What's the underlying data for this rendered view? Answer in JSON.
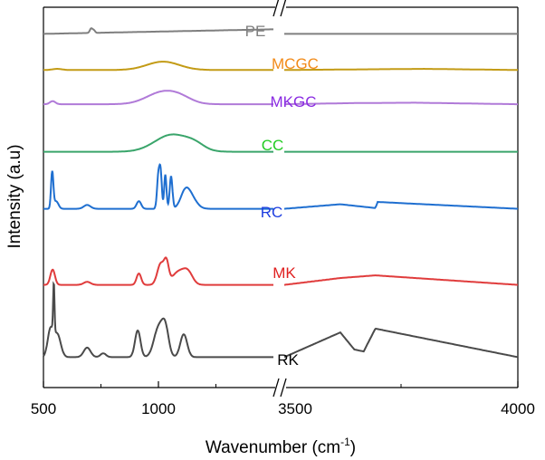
{
  "chart_data": {
    "type": "line",
    "title": "",
    "xlabel": "Wavenumber (cm",
    "xlabel_superscript": "-1",
    "xlabel_close": ")",
    "ylabel": "Intensity (a.u)",
    "y_ticks_shown": false,
    "axis_break": "between 1500 and 3500",
    "x_segments": [
      {
        "range": [
          500,
          1500
        ],
        "ticks": [
          500,
          1000
        ]
      },
      {
        "range": [
          3500,
          4000
        ],
        "ticks": [
          3500,
          4000
        ]
      }
    ],
    "x_tick_labels": [
      "500",
      "1000",
      "3500",
      "4000"
    ],
    "series": [
      {
        "name": "PE",
        "color": "#7f7f7f",
        "baseline": 0.93,
        "peaks": [
          [
            708,
            0.012,
            6
          ],
          [
            720,
            0.006,
            5
          ]
        ],
        "ramp": [
          [
            500,
            0.0
          ],
          [
            1500,
            0.012
          ]
        ],
        "right": [
          [
            3500,
            0.0
          ],
          [
            3700,
            0.0
          ],
          [
            4000,
            0.0
          ]
        ]
      },
      {
        "name": "MCGC",
        "color": "#c39b16",
        "baseline": 0.835,
        "peaks": [
          [
            1020,
            0.022,
            70
          ],
          [
            560,
            0.003,
            20
          ]
        ],
        "ramp": [
          [
            500,
            0.0
          ],
          [
            1500,
            0.0
          ]
        ],
        "right": [
          [
            3500,
            0.0
          ],
          [
            3800,
            0.003
          ],
          [
            4000,
            0.0
          ]
        ]
      },
      {
        "name": "MKGC",
        "color": "#b07ad8",
        "baseline": 0.745,
        "peaks": [
          [
            540,
            0.008,
            12
          ],
          [
            1020,
            0.032,
            70
          ],
          [
            1100,
            0.01,
            50
          ]
        ],
        "ramp": [
          [
            500,
            0.0
          ],
          [
            1500,
            0.0
          ]
        ],
        "right": [
          [
            3500,
            0.0
          ],
          [
            3650,
            0.003
          ],
          [
            3780,
            0.004
          ],
          [
            4000,
            0.0
          ]
        ]
      },
      {
        "name": "CC",
        "color": "#3aa56b",
        "baseline": 0.62,
        "peaks": [
          [
            1060,
            0.045,
            75
          ],
          [
            1160,
            0.012,
            40
          ]
        ],
        "ramp": [
          [
            500,
            0.0
          ],
          [
            1500,
            0.0
          ]
        ],
        "right": [
          [
            3500,
            0.0
          ],
          [
            4000,
            0.0
          ]
        ]
      },
      {
        "name": "RC",
        "color": "#1f6fd0",
        "baseline": 0.47,
        "peaks": [
          [
            538,
            0.095,
            5
          ],
          [
            555,
            0.02,
            10
          ],
          [
            690,
            0.01,
            15
          ],
          [
            915,
            0.02,
            10
          ],
          [
            1000,
            0.09,
            6
          ],
          [
            1010,
            0.085,
            5
          ],
          [
            1030,
            0.09,
            5
          ],
          [
            1055,
            0.085,
            6
          ],
          [
            1115,
            0.035,
            20
          ],
          [
            1140,
            0.03,
            25
          ]
        ],
        "ramp": [
          [
            500,
            0.0
          ],
          [
            1500,
            0.0
          ]
        ],
        "right": [
          [
            3500,
            0.0
          ],
          [
            3620,
            0.012
          ],
          [
            3695,
            0.002
          ],
          [
            3700,
            0.018
          ],
          [
            4000,
            0.0
          ]
        ]
      },
      {
        "name": "MK",
        "color": "#e03c3c",
        "baseline": 0.27,
        "peaks": [
          [
            540,
            0.04,
            10
          ],
          [
            690,
            0.008,
            15
          ],
          [
            915,
            0.03,
            10
          ],
          [
            1010,
            0.055,
            15
          ],
          [
            1035,
            0.05,
            10
          ],
          [
            1090,
            0.035,
            30
          ],
          [
            1130,
            0.025,
            20
          ]
        ],
        "ramp": [
          [
            500,
            0.0
          ],
          [
            1500,
            0.0
          ]
        ],
        "right": [
          [
            3500,
            0.0
          ],
          [
            3620,
            0.018
          ],
          [
            3695,
            0.025
          ],
          [
            4000,
            0.0
          ]
        ]
      },
      {
        "name": "RK",
        "color": "#4a4a4a",
        "baseline": 0.08,
        "peaks": [
          [
            530,
            0.07,
            12
          ],
          [
            545,
            0.13,
            3
          ],
          [
            560,
            0.06,
            15
          ],
          [
            690,
            0.025,
            15
          ],
          [
            760,
            0.01,
            12
          ],
          [
            910,
            0.07,
            12
          ],
          [
            1000,
            0.075,
            20
          ],
          [
            1030,
            0.07,
            15
          ],
          [
            1110,
            0.06,
            15
          ]
        ],
        "ramp": [
          [
            500,
            0.0
          ],
          [
            1500,
            0.0
          ]
        ],
        "right": [
          [
            3500,
            0.0
          ],
          [
            3620,
            0.065
          ],
          [
            3650,
            0.02
          ],
          [
            3670,
            0.015
          ],
          [
            3695,
            0.075
          ],
          [
            4000,
            0.0
          ]
        ]
      }
    ],
    "series_labels": [
      {
        "name": "PE",
        "color": "#7f7f7f"
      },
      {
        "name": "MCGC",
        "color": "#f28a18"
      },
      {
        "name": "MKGC",
        "color": "#8a2be2"
      },
      {
        "name": "CC",
        "color": "#22cc22"
      },
      {
        "name": "RC",
        "color": "#1f3ee0"
      },
      {
        "name": "MK",
        "color": "#e02020"
      },
      {
        "name": "RK",
        "color": "#000000"
      }
    ],
    "grid": false,
    "legend": "none"
  }
}
